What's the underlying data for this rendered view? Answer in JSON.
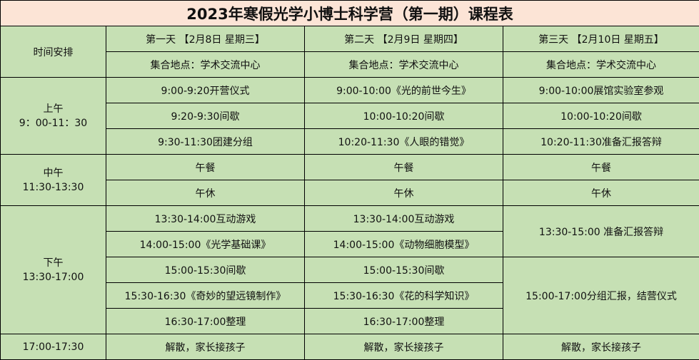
{
  "title": "2023年寒假光学小博士科学营（第一期）课程表",
  "header": {
    "time_label": "时间安排",
    "days": [
      "第一天 【2月8日 星期三】",
      "第二天 【2月9日 星期四】",
      "第三天 【2月10日 星期五】"
    ],
    "locations": [
      "集合地点：学术交流中心",
      "集合地点：学术交流中心",
      "集合地点：学术交流中心"
    ]
  },
  "morning": {
    "label": "上午",
    "time": "9：00-11：30",
    "day1": [
      "9:00-9:20开营仪式",
      "9:20-9:30间歇",
      "9:30-11:30团建分组"
    ],
    "day2": [
      "9:00-10:00《光的前世今生》",
      "10:00-10:20间歇",
      "10:20-11:30《人眼的错觉》"
    ],
    "day3": [
      "9:00-10:00展馆实验室参观",
      "10:00-10:20间歇",
      "10:20-11:30准备汇报答辩"
    ]
  },
  "noon": {
    "label": "中午",
    "time": "11:30-13:30",
    "day1": [
      "午餐",
      "午休"
    ],
    "day2": [
      "午餐",
      "午休"
    ],
    "day3": [
      "午餐",
      "午休"
    ]
  },
  "afternoon": {
    "label": "下午",
    "time": "13:30-17:00",
    "day1": [
      "13:30-14:00互动游戏",
      "14:00-15:00《光学基础课》",
      "15:00-15:30间歇",
      "15:30-16:30《奇妙的望远镜制作》",
      "16:30-17:00整理"
    ],
    "day2": [
      "13:30-14:00互动游戏",
      "14:00-15:00《动物细胞模型》",
      "15:00-15:30间歇",
      "15:30-16:30《花的科学知识》",
      "16:30-17:00整理"
    ],
    "day3": [
      "13:30-15:00 准备汇报答辩",
      "15:00-17:00分组汇报，结营仪式"
    ]
  },
  "dismiss": {
    "time": "17:00-17:30",
    "items": [
      "解散，家长接孩子",
      "解散，家长接孩子",
      "解散，家长接孩子"
    ]
  }
}
